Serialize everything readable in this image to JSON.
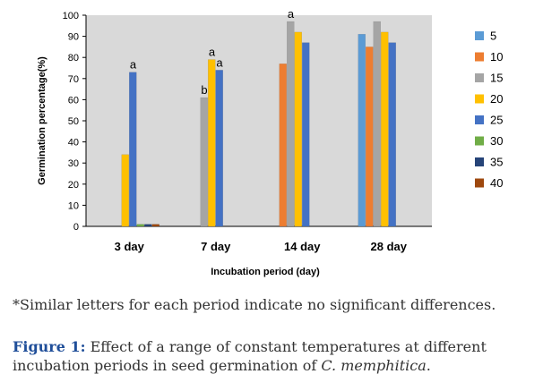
{
  "chart_data": {
    "type": "bar",
    "categories": [
      "3 day",
      "7 day",
      "14 day",
      "28 day"
    ],
    "xlabel": "Incubation period (day)",
    "ylabel": "Germination percentage(%)",
    "ylim": [
      0,
      100
    ],
    "yticks": [
      0,
      10,
      20,
      30,
      40,
      50,
      60,
      70,
      80,
      90,
      100
    ],
    "grid": false,
    "legend_position": "right",
    "series": [
      {
        "name": "5",
        "color": "#5b9bd5",
        "values": [
          0,
          0,
          0,
          91
        ]
      },
      {
        "name": "10",
        "color": "#ed7d31",
        "values": [
          0,
          0,
          77,
          85
        ]
      },
      {
        "name": "15",
        "color": "#a5a5a5",
        "values": [
          0,
          61,
          97,
          97
        ]
      },
      {
        "name": "20",
        "color": "#ffc000",
        "values": [
          34,
          79,
          92,
          92
        ]
      },
      {
        "name": "25",
        "color": "#4472c4",
        "values": [
          73,
          74,
          87,
          87
        ]
      },
      {
        "name": "30",
        "color": "#70ad47",
        "values": [
          1,
          0,
          0,
          0
        ]
      },
      {
        "name": "35",
        "color": "#264478",
        "values": [
          1,
          0,
          0,
          0
        ]
      },
      {
        "name": "40",
        "color": "#9e480e",
        "values": [
          1,
          0,
          0,
          0
        ]
      }
    ],
    "annotations": [
      {
        "text": "a",
        "category": "3 day",
        "series": "25"
      },
      {
        "text": "b",
        "category": "7 day",
        "series": "15"
      },
      {
        "text": "a",
        "category": "7 day",
        "series": "20"
      },
      {
        "text": "a",
        "category": "7 day",
        "series": "25"
      },
      {
        "text": "a",
        "category": "14 day",
        "series": "15"
      }
    ]
  },
  "caption": {
    "note": "*Similar letters for each period indicate no significant differences.",
    "figure_label": "Figure 1:",
    "text_before": " Effect of a range of constant temperatures at different incubation periods in seed germination of ",
    "species": "C. memphitica",
    "text_after": "."
  }
}
